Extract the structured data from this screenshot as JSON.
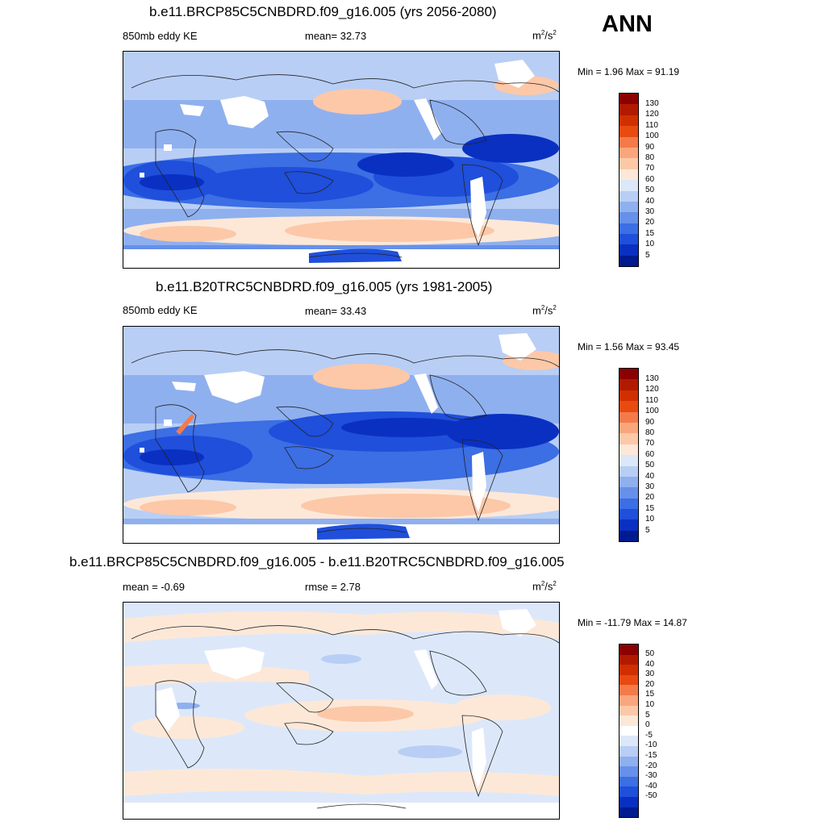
{
  "season": "ANN",
  "panels": [
    {
      "title": "b.e11.BRCP85C5CNBDRD.f09_g16.005 (yrs 2056-2080)",
      "left_label": "850mb eddy KE",
      "center_label": "mean=  32.73",
      "units_base": "m",
      "units_exp1": "2",
      "units_mid": "/s",
      "units_exp2": "2",
      "minmax": "Min =   1.96 Max =  91.19",
      "colorbar": {
        "colors": [
          "#8b0000",
          "#b21a00",
          "#d03000",
          "#e84a10",
          "#f47a4a",
          "#f9a67c",
          "#fcc8a8",
          "#fde8d8",
          "#dce8fa",
          "#b8cef5",
          "#8fb0ef",
          "#6690ea",
          "#3c6ee4",
          "#1f4fdb",
          "#0a30c2",
          "#001a8f"
        ],
        "labels": [
          "130",
          "120",
          "110",
          "100",
          "90",
          "80",
          "70",
          "60",
          "50",
          "40",
          "30",
          "20",
          "15",
          "10",
          "5"
        ]
      }
    },
    {
      "title": "b.e11.B20TRC5CNBDRD.f09_g16.005 (yrs 1981-2005)",
      "left_label": "850mb eddy KE",
      "center_label": "mean=  33.43",
      "units_base": "m",
      "units_exp1": "2",
      "units_mid": "/s",
      "units_exp2": "2",
      "minmax": "Min =   1.56 Max =  93.45",
      "colorbar": {
        "colors": [
          "#8b0000",
          "#b21a00",
          "#d03000",
          "#e84a10",
          "#f47a4a",
          "#f9a67c",
          "#fcc8a8",
          "#fde8d8",
          "#dce8fa",
          "#b8cef5",
          "#8fb0ef",
          "#6690ea",
          "#3c6ee4",
          "#1f4fdb",
          "#0a30c2",
          "#001a8f"
        ],
        "labels": [
          "130",
          "120",
          "110",
          "100",
          "90",
          "80",
          "70",
          "60",
          "50",
          "40",
          "30",
          "20",
          "15",
          "10",
          "5"
        ]
      }
    },
    {
      "title": "b.e11.BRCP85C5CNBDRD.f09_g16.005 - b.e11.B20TRC5CNBDRD.f09_g16.005",
      "left_label": "mean =  -0.69",
      "center_label": "rmse =   2.78",
      "units_base": "m",
      "units_exp1": "2",
      "units_mid": "/s",
      "units_exp2": "2",
      "minmax": "Min = -11.79 Max =  14.87",
      "colorbar": {
        "colors": [
          "#8b0000",
          "#b21a00",
          "#d03000",
          "#e84a10",
          "#f47a4a",
          "#f9a67c",
          "#fcc8a8",
          "#fde8d8",
          "#ffffff",
          "#dce8fa",
          "#b8cef5",
          "#8fb0ef",
          "#6690ea",
          "#3c6ee4",
          "#1f4fdb",
          "#0a30c2",
          "#001a8f"
        ],
        "labels": [
          "50",
          "40",
          "30",
          "20",
          "15",
          "10",
          "5",
          "0",
          "-5",
          "-10",
          "-15",
          "-20",
          "-30",
          "-40",
          "-50"
        ]
      }
    }
  ]
}
